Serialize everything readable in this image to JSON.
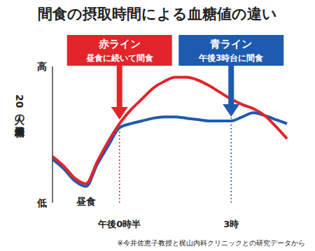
{
  "chart_data": {
    "type": "line",
    "title": "間食の摂取時間による血糖値の違い",
    "y_label": "20人の平均血糖値",
    "categories": [
      null,
      null,
      null,
      null,
      null,
      null,
      "午後0時半",
      null,
      null,
      null,
      null,
      null,
      null,
      null,
      null,
      null,
      "3時",
      null,
      null,
      null,
      null,
      null
    ],
    "series": [
      {
        "name": "赤ライン",
        "color": "#e3242b",
        "values": [
          34,
          27,
          18,
          14,
          30,
          45,
          58,
          68,
          76,
          84,
          89,
          92,
          92,
          90,
          86,
          81,
          76,
          72,
          69,
          64,
          56,
          47
        ]
      },
      {
        "name": "青ライン",
        "color": "#1d5bb0",
        "values": [
          32,
          25,
          16,
          12,
          28,
          42,
          55,
          58,
          60,
          62,
          63,
          63,
          62,
          61,
          60,
          60,
          60,
          63,
          66,
          64,
          61,
          58
        ]
      }
    ],
    "ylim": [
      0,
      100
    ],
    "yticks": [
      {
        "value": 0,
        "label": "低"
      },
      {
        "value": 100,
        "label": "高"
      }
    ],
    "annotations": [
      {
        "series": "赤ライン",
        "text": "昼食に続いて間食",
        "x": 6
      },
      {
        "series": "青ライン",
        "text": "午後3時台に間食",
        "x": 16
      },
      {
        "text": "昼食",
        "x": 3
      }
    ],
    "note": "※今井佐恵子教授と梶山内科クリニックとの研究データから",
    "grid": false,
    "legend": false
  }
}
